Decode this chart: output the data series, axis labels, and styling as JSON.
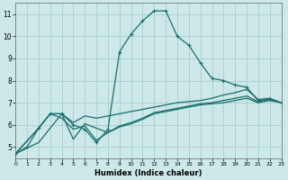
{
  "xlabel": "Humidex (Indice chaleur)",
  "bg_color": "#cce8e8",
  "grid_color": "#aacccc",
  "line_color": "#1a6e6e",
  "xlim": [
    0,
    23
  ],
  "ylim": [
    4.5,
    11.5
  ],
  "xticks": [
    0,
    1,
    2,
    3,
    4,
    5,
    6,
    7,
    8,
    9,
    10,
    11,
    12,
    13,
    14,
    15,
    16,
    17,
    18,
    19,
    20,
    21,
    22,
    23
  ],
  "yticks": [
    5,
    6,
    7,
    8,
    9,
    10,
    11
  ],
  "line1_x": [
    0,
    1,
    2,
    3,
    4,
    5,
    6,
    7,
    8,
    9,
    10,
    11,
    12,
    13,
    14,
    15,
    16,
    17,
    18,
    19,
    20,
    21,
    22,
    23
  ],
  "line1_y": [
    4.7,
    5.0,
    5.85,
    6.5,
    6.5,
    6.0,
    5.8,
    5.2,
    5.8,
    9.3,
    10.1,
    10.7,
    11.15,
    11.15,
    10.0,
    9.6,
    8.8,
    8.1,
    8.0,
    7.8,
    7.7,
    7.1,
    7.15,
    7.0
  ],
  "line2_x": [
    0,
    2,
    3,
    4,
    5,
    6,
    7,
    14,
    15,
    16,
    17,
    18,
    19,
    20,
    21,
    22,
    23
  ],
  "line2_y": [
    4.7,
    5.85,
    6.5,
    6.5,
    6.1,
    6.4,
    6.3,
    7.0,
    7.05,
    7.1,
    7.2,
    7.35,
    7.45,
    7.6,
    7.15,
    7.2,
    7.0
  ],
  "line3_x": [
    0,
    2,
    3,
    4,
    5,
    6,
    7,
    8,
    9,
    10,
    11,
    12,
    13,
    14,
    15,
    16,
    17,
    18,
    19,
    20,
    21,
    22,
    23
  ],
  "line3_y": [
    4.7,
    5.85,
    6.5,
    6.3,
    5.8,
    5.95,
    5.3,
    5.65,
    5.95,
    6.1,
    6.3,
    6.55,
    6.65,
    6.75,
    6.85,
    6.95,
    7.0,
    7.1,
    7.2,
    7.3,
    7.05,
    7.15,
    7.0
  ],
  "line4_x": [
    0,
    2,
    3,
    4,
    5,
    6,
    7,
    8,
    9,
    10,
    11,
    12,
    13,
    14,
    15,
    16,
    17,
    18,
    19,
    20,
    21,
    22,
    23
  ],
  "line4_y": [
    4.7,
    5.2,
    5.85,
    6.5,
    5.35,
    6.05,
    5.85,
    5.65,
    5.9,
    6.05,
    6.25,
    6.5,
    6.6,
    6.7,
    6.8,
    6.9,
    6.95,
    7.0,
    7.1,
    7.2,
    7.0,
    7.1,
    7.0
  ]
}
